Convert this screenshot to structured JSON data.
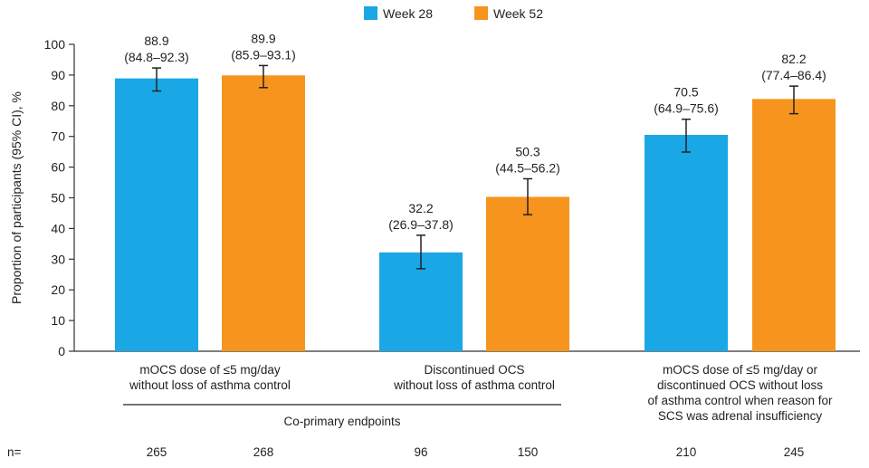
{
  "chart_data": {
    "type": "bar",
    "ylabel": "Proportion of participants (95% CI), %",
    "ylim": [
      0,
      100
    ],
    "yticks": [
      0,
      10,
      20,
      30,
      40,
      50,
      60,
      70,
      80,
      90,
      100
    ],
    "legend_position": "top-center",
    "series": [
      {
        "name": "Week 28",
        "color": "#1aa7e6"
      },
      {
        "name": "Week 52",
        "color": "#f7941d"
      }
    ],
    "groups": [
      {
        "label_lines": [
          "mOCS dose of ≤5 mg/day",
          "without loss of asthma control"
        ],
        "bars": [
          {
            "series": "Week 28",
            "value": 88.9,
            "ci": [
              84.8,
              92.3
            ],
            "value_label": "88.9",
            "ci_label": "(84.8–92.3)",
            "n": "265"
          },
          {
            "series": "Week 52",
            "value": 89.9,
            "ci": [
              85.9,
              93.1
            ],
            "value_label": "89.9",
            "ci_label": "(85.9–93.1)",
            "n": "268"
          }
        ]
      },
      {
        "label_lines": [
          "Discontinued OCS",
          "without loss of asthma control"
        ],
        "bars": [
          {
            "series": "Week 28",
            "value": 32.2,
            "ci": [
              26.9,
              37.8
            ],
            "value_label": "32.2",
            "ci_label": "(26.9–37.8)",
            "n": "96"
          },
          {
            "series": "Week 52",
            "value": 50.3,
            "ci": [
              44.5,
              56.2
            ],
            "value_label": "50.3",
            "ci_label": "(44.5–56.2)",
            "n": "150"
          }
        ]
      },
      {
        "label_lines": [
          "mOCS dose of ≤5 mg/day or",
          "discontinued OCS without loss",
          "of asthma control when reason for",
          "SCS was adrenal insufficiency"
        ],
        "bars": [
          {
            "series": "Week 28",
            "value": 70.5,
            "ci": [
              64.9,
              75.6
            ],
            "value_label": "70.5",
            "ci_label": "(64.9–75.6)",
            "n": "210"
          },
          {
            "series": "Week 52",
            "value": 82.2,
            "ci": [
              77.4,
              86.4
            ],
            "value_label": "82.2",
            "ci_label": "(77.4–86.4)",
            "n": "245"
          }
        ]
      }
    ],
    "bracket_label": "Co-primary endpoints",
    "n_label": "n="
  }
}
